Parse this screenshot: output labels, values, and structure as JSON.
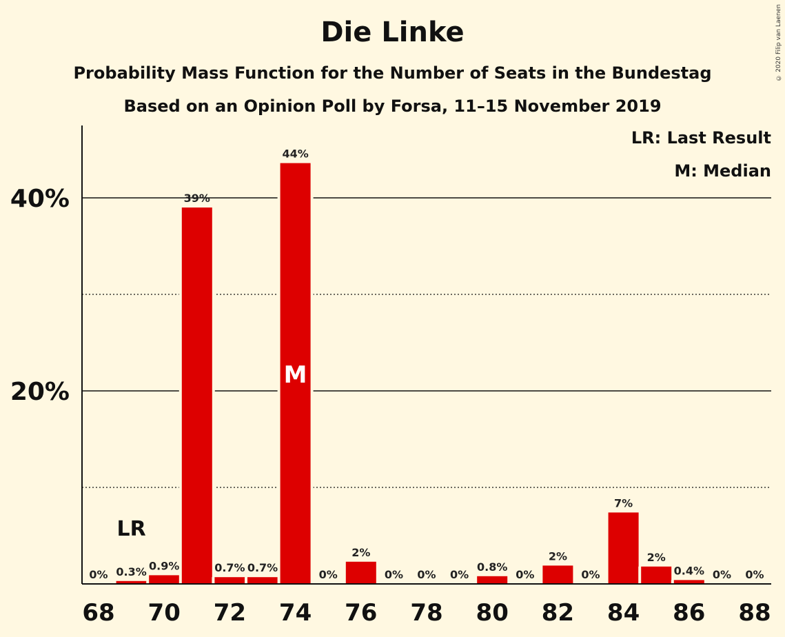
{
  "title": "Die Linke",
  "subtitle": "Probability Mass Function for the Number of Seats in the Bundestag",
  "subtitle2": "Based on an Opinion Poll by Forsa, 11–15 November 2019",
  "copyright": "© 2020 Filip van Laenen",
  "legend": {
    "last_result": "LR: Last Result",
    "median": "M: Median"
  },
  "colors": {
    "bar": "#dd0000",
    "background": "#fff8e1"
  },
  "chart_data": {
    "type": "bar",
    "x": [
      68,
      69,
      70,
      71,
      72,
      73,
      74,
      75,
      76,
      77,
      78,
      79,
      80,
      81,
      82,
      83,
      84,
      85,
      86,
      87,
      88
    ],
    "values": [
      0,
      0.3,
      0.9,
      39,
      0.7,
      0.7,
      43.6,
      0,
      2.3,
      0,
      0,
      0,
      0.8,
      0,
      1.9,
      0,
      7.4,
      1.8,
      0.4,
      0,
      0
    ],
    "labels": [
      "0%",
      "0.3%",
      "0.9%",
      "39%",
      "0.7%",
      "0.7%",
      "44%",
      "0%",
      "2%",
      "0%",
      "0%",
      "0%",
      "0.8%",
      "0%",
      "2%",
      "0%",
      "7%",
      "2%",
      "0.4%",
      "0%",
      "0%"
    ],
    "x_ticks": [
      "68",
      "70",
      "72",
      "74",
      "76",
      "78",
      "80",
      "82",
      "84",
      "86",
      "88"
    ],
    "y_ticks": [
      {
        "value": 20,
        "label": "20%"
      },
      {
        "value": 40,
        "label": "40%"
      }
    ],
    "minor_gridlines": [
      10,
      30
    ],
    "ylim": [
      0,
      47.5
    ],
    "last_result": {
      "x": 69,
      "label": "LR"
    },
    "median": {
      "x": 74,
      "label": "M"
    }
  }
}
